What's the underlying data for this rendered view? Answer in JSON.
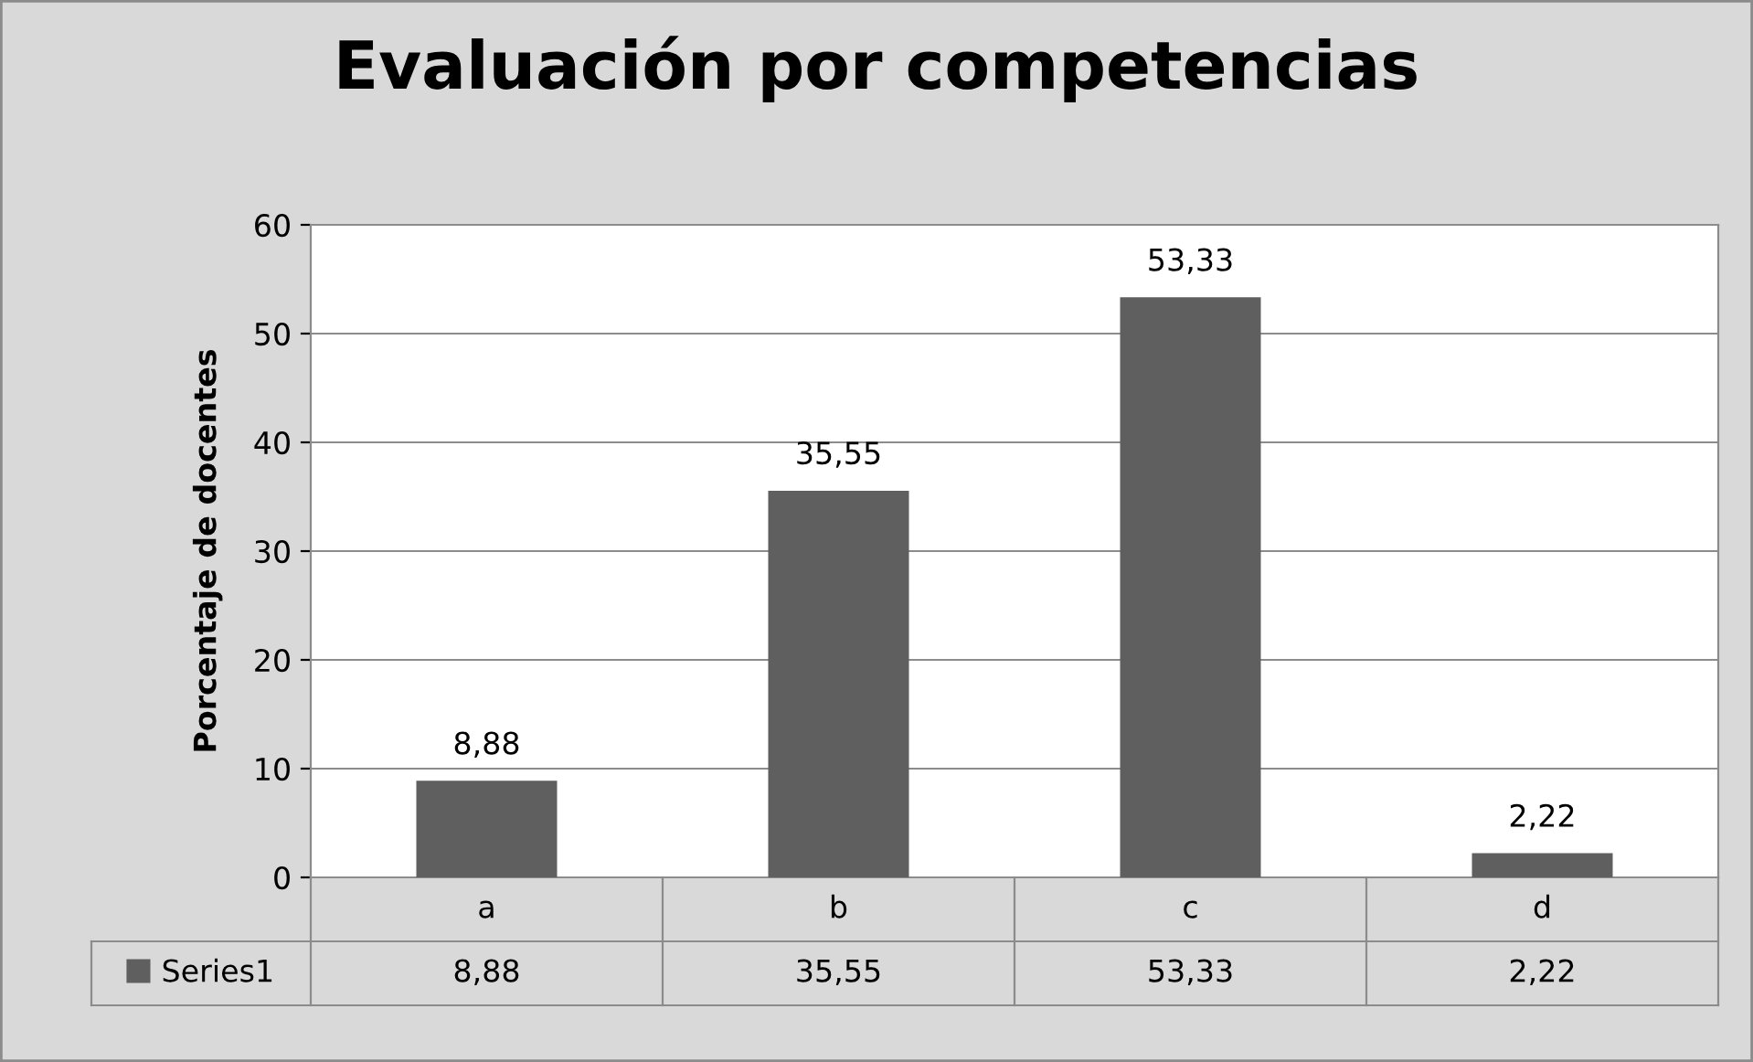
{
  "chart_data": {
    "type": "bar",
    "title": "Evaluación por competencias",
    "ylabel": "Porcentaje de docentes",
    "categories": [
      "a",
      "b",
      "c",
      "d"
    ],
    "series": [
      {
        "name": "Series1",
        "color": "#5f5f5f",
        "values": [
          8.88,
          35.55,
          53.33,
          2.22
        ],
        "value_labels": [
          "8,88",
          "35,55",
          "53,33",
          "2,22"
        ]
      }
    ],
    "ylim": [
      0,
      60
    ],
    "yticks": [
      0,
      10,
      20,
      30,
      40,
      50,
      60
    ],
    "grid": "y",
    "legend": "bottom"
  }
}
